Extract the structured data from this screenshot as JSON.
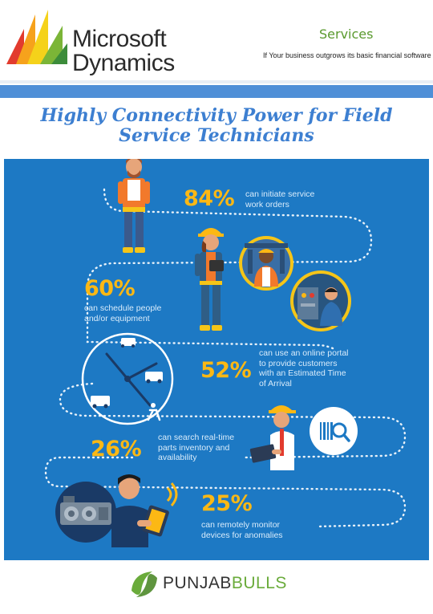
{
  "header": {
    "logo_line1": "Microsoft",
    "logo_line2": "Dynamics",
    "services": "Services",
    "tagline": "If Your business outgrows its basic financial software"
  },
  "title": {
    "line1": "Highly Connectivity Power for Field",
    "line2": "Service Technicians"
  },
  "stats": [
    {
      "value": "84%",
      "text_lines": [
        "can initiate service",
        "work orders"
      ]
    },
    {
      "value": "60%",
      "text_lines": [
        "can schedule people",
        "and/or equipment"
      ]
    },
    {
      "value": "52%",
      "text_lines": [
        "can use an online portal",
        "to provide customers",
        "with an Estimated Time",
        "of Arrival"
      ]
    },
    {
      "value": "26%",
      "text_lines": [
        "can search real-time",
        "parts inventory and",
        "availability"
      ]
    },
    {
      "value": "25%",
      "text_lines": [
        "can remotely monitor",
        "devices for anomalies"
      ]
    }
  ],
  "footer": {
    "brand_part1": "PUNJAB",
    "brand_part2": "BULLS"
  },
  "colors": {
    "infographic_bg": "#1d79c4",
    "stat_yellow": "#fcb814",
    "title_blue": "#3d7fd1",
    "services_green": "#5a9a2e",
    "brand_green": "#6aab3b"
  }
}
